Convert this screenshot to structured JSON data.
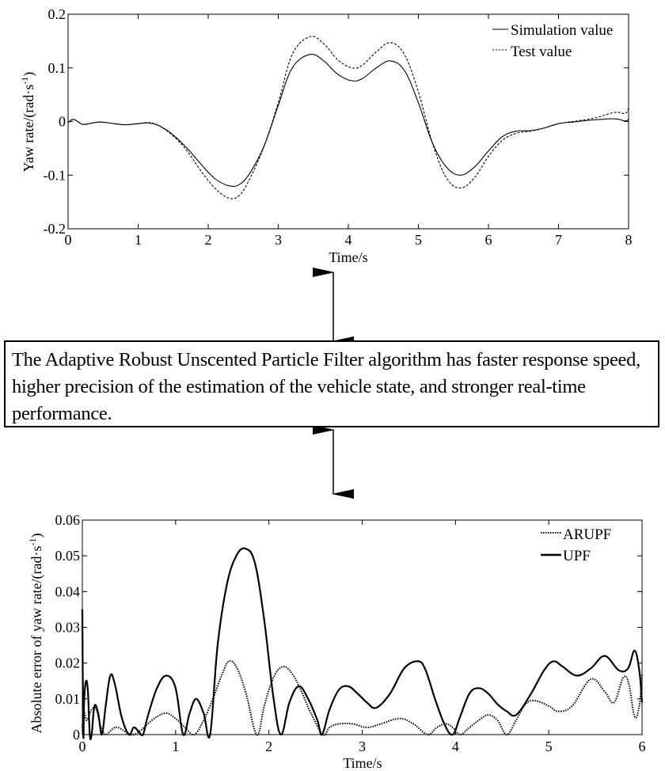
{
  "conclusion": {
    "text": "The Adaptive Robust Unscented Particle Filter algorithm has faster response speed, higher precision of the estimation of the vehicle state, and stronger real-time performance."
  },
  "chart_data": [
    {
      "type": "line",
      "title": "",
      "xlabel": "Time/s",
      "ylabel": "Yaw rate/(rad·s⁻¹)",
      "xlim": [
        0,
        8
      ],
      "ylim": [
        -0.2,
        0.2
      ],
      "xticks": [
        "0",
        "1",
        "2",
        "3",
        "4",
        "5",
        "6",
        "7",
        "8"
      ],
      "yticks": [
        "-0.2",
        "-0.1",
        "0",
        "0.1",
        "0.2"
      ],
      "grid": false,
      "legend_position": "upper right",
      "series": [
        {
          "name": "Simulation value",
          "style": "solid",
          "x": [
            0,
            0.08,
            0.2,
            0.3,
            0.45,
            0.6,
            0.8,
            1.0,
            1.15,
            1.3,
            1.5,
            1.7,
            1.9,
            2.1,
            2.3,
            2.45,
            2.6,
            2.8,
            3.0,
            3.2,
            3.45,
            3.65,
            3.85,
            4.05,
            4.2,
            4.4,
            4.6,
            4.8,
            5.0,
            5.2,
            5.4,
            5.6,
            5.8,
            6.0,
            6.2,
            6.4,
            6.6,
            6.8,
            7.0,
            7.2,
            7.5,
            7.8,
            7.95,
            8.0
          ],
          "values": [
            -0.002,
            0.004,
            -0.005,
            -0.004,
            -0.001,
            -0.003,
            -0.006,
            -0.004,
            -0.003,
            -0.008,
            -0.025,
            -0.05,
            -0.08,
            -0.107,
            -0.12,
            -0.117,
            -0.095,
            -0.045,
            0.03,
            0.1,
            0.125,
            0.113,
            0.088,
            0.076,
            0.08,
            0.1,
            0.113,
            0.095,
            0.035,
            -0.04,
            -0.085,
            -0.1,
            -0.085,
            -0.055,
            -0.028,
            -0.018,
            -0.017,
            -0.012,
            -0.004,
            -0.001,
            0.003,
            0.005,
            0.001,
            0.004
          ]
        },
        {
          "name": "Test value",
          "style": "dashed",
          "x": [
            0,
            0.08,
            0.2,
            0.3,
            0.45,
            0.6,
            0.8,
            1.0,
            1.15,
            1.3,
            1.5,
            1.7,
            1.9,
            2.1,
            2.3,
            2.45,
            2.6,
            2.8,
            3.0,
            3.2,
            3.45,
            3.65,
            3.85,
            4.05,
            4.2,
            4.4,
            4.6,
            4.8,
            5.0,
            5.2,
            5.4,
            5.6,
            5.8,
            6.0,
            6.2,
            6.4,
            6.6,
            6.8,
            7.0,
            7.2,
            7.5,
            7.8,
            7.95,
            8.0
          ],
          "values": [
            -0.002,
            0.004,
            -0.005,
            -0.004,
            -0.001,
            -0.003,
            -0.006,
            -0.004,
            -0.002,
            -0.008,
            -0.027,
            -0.055,
            -0.093,
            -0.125,
            -0.143,
            -0.137,
            -0.105,
            -0.045,
            0.035,
            0.125,
            0.158,
            0.145,
            0.115,
            0.1,
            0.105,
            0.13,
            0.147,
            0.125,
            0.055,
            -0.04,
            -0.105,
            -0.124,
            -0.105,
            -0.065,
            -0.035,
            -0.022,
            -0.018,
            -0.012,
            -0.004,
            0.0,
            0.006,
            0.017,
            0.015,
            0.025
          ]
        }
      ]
    },
    {
      "type": "line",
      "title": "",
      "xlabel": "Time/s",
      "ylabel": "Absolute error of yaw rate/(rad·s⁻¹)",
      "xlim": [
        0,
        6
      ],
      "ylim": [
        0,
        0.06
      ],
      "xticks": [
        "0",
        "1",
        "2",
        "3",
        "4",
        "5",
        "6"
      ],
      "yticks": [
        "0",
        "0.01",
        "0.02",
        "0.03",
        "0.04",
        "0.05",
        "0.06"
      ],
      "grid": false,
      "legend_position": "upper right",
      "series": [
        {
          "name": "ARUPF",
          "style": "dotted",
          "x": [
            0,
            0.02,
            0.05,
            0.1,
            0.15,
            0.2,
            0.25,
            0.3,
            0.35,
            0.4,
            0.45,
            0.5,
            0.55,
            0.62,
            0.7,
            0.8,
            0.9,
            1.0,
            1.1,
            1.2,
            1.3,
            1.4,
            1.5,
            1.57,
            1.65,
            1.75,
            1.87,
            1.95,
            2.05,
            2.15,
            2.25,
            2.35,
            2.45,
            2.58,
            2.65,
            2.75,
            2.9,
            3.05,
            3.2,
            3.4,
            3.55,
            3.7,
            3.8,
            3.9,
            3.97,
            4.05,
            4.15,
            4.25,
            4.35,
            4.45,
            4.55,
            4.65,
            4.75,
            4.85,
            5.0,
            5.1,
            5.25,
            5.45,
            5.6,
            5.7,
            5.8,
            5.86,
            5.92,
            5.97,
            6.0
          ],
          "values": [
            0.002,
            0.006,
            0.004,
            0.007,
            0.007,
            0.002,
            0.0,
            0.001,
            0.002,
            0.0018,
            0.001,
            0.0002,
            0.0,
            0.001,
            0.003,
            0.005,
            0.006,
            0.0045,
            0.002,
            0.0,
            0.004,
            0.01,
            0.017,
            0.0205,
            0.019,
            0.012,
            0.0,
            0.008,
            0.016,
            0.019,
            0.017,
            0.012,
            0.006,
            0.0,
            0.002,
            0.003,
            0.003,
            0.002,
            0.003,
            0.0045,
            0.003,
            0.0,
            0.002,
            0.003,
            0.002,
            0.0,
            0.002,
            0.004,
            0.0055,
            0.004,
            0.0,
            0.004,
            0.0085,
            0.0095,
            0.008,
            0.0065,
            0.008,
            0.0155,
            0.012,
            0.009,
            0.016,
            0.014,
            0.005,
            0.008,
            0.017
          ]
        },
        {
          "name": "UPF",
          "style": "solid",
          "x": [
            0,
            0.01,
            0.02,
            0.04,
            0.06,
            0.08,
            0.1,
            0.13,
            0.17,
            0.21,
            0.25,
            0.3,
            0.35,
            0.42,
            0.5,
            0.55,
            0.6,
            0.65,
            0.7,
            0.8,
            0.9,
            1.0,
            1.08,
            1.15,
            1.22,
            1.3,
            1.37,
            1.45,
            1.55,
            1.65,
            1.75,
            1.85,
            1.95,
            2.05,
            2.13,
            2.22,
            2.32,
            2.42,
            2.52,
            2.57,
            2.65,
            2.75,
            2.85,
            2.95,
            3.05,
            3.15,
            3.3,
            3.45,
            3.6,
            3.68,
            3.78,
            3.88,
            3.97,
            4.05,
            4.15,
            4.25,
            4.35,
            4.45,
            4.55,
            4.65,
            4.8,
            4.95,
            5.05,
            5.15,
            5.3,
            5.45,
            5.6,
            5.75,
            5.85,
            5.92,
            5.97,
            6.0
          ],
          "values": [
            0.035,
            0.0,
            0.01,
            0.015,
            0.012,
            0.0,
            0.0,
            0.008,
            0.006,
            0.0,
            0.008,
            0.0165,
            0.014,
            0.005,
            0.0,
            0.002,
            0.001,
            0.0,
            0.005,
            0.013,
            0.0165,
            0.013,
            0.0,
            0.006,
            0.01,
            0.006,
            0.0,
            0.025,
            0.042,
            0.05,
            0.052,
            0.048,
            0.032,
            0.01,
            0.0,
            0.009,
            0.0135,
            0.01,
            0.004,
            0.0,
            0.007,
            0.0125,
            0.0135,
            0.0115,
            0.009,
            0.0075,
            0.0115,
            0.0185,
            0.0205,
            0.018,
            0.01,
            0.003,
            0.0,
            0.005,
            0.0115,
            0.013,
            0.0115,
            0.0085,
            0.0065,
            0.0055,
            0.011,
            0.018,
            0.0205,
            0.019,
            0.0165,
            0.0185,
            0.022,
            0.018,
            0.0185,
            0.0235,
            0.018,
            0.009
          ]
        }
      ]
    }
  ],
  "arrows": [
    {
      "label": "double-arrow-top"
    },
    {
      "label": "double-arrow-bottom"
    }
  ]
}
